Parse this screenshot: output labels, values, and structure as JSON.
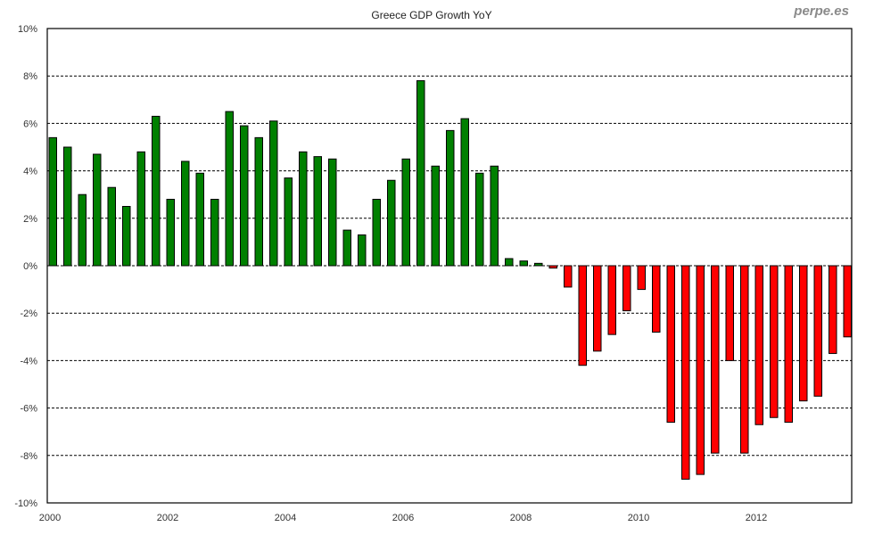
{
  "chart_data": {
    "type": "bar",
    "title": "Greece GDP Growth YoY",
    "watermark": "perpe.es",
    "xlabel": "",
    "ylabel": "",
    "ylim": [
      -10,
      10
    ],
    "ytick_labels": [
      "10%",
      "8%",
      "6%",
      "4%",
      "2%",
      "0%",
      "-2%",
      "-4%",
      "-6%",
      "-8%",
      "-10%"
    ],
    "ytick_values": [
      10,
      8,
      6,
      4,
      2,
      0,
      -2,
      -4,
      -6,
      -8,
      -10
    ],
    "xtick_labels": [
      "2000",
      "2002",
      "2004",
      "2006",
      "2008",
      "2010",
      "2012"
    ],
    "grid": true,
    "positive_color": "#008000",
    "negative_color": "#ff0000",
    "categories": [
      "2000Q1",
      "2000Q2",
      "2000Q3",
      "2000Q4",
      "2001Q1",
      "2001Q2",
      "2001Q3",
      "2001Q4",
      "2002Q1",
      "2002Q2",
      "2002Q3",
      "2002Q4",
      "2003Q1",
      "2003Q2",
      "2003Q3",
      "2003Q4",
      "2004Q1",
      "2004Q2",
      "2004Q3",
      "2004Q4",
      "2005Q1",
      "2005Q2",
      "2005Q3",
      "2005Q4",
      "2006Q1",
      "2006Q2",
      "2006Q3",
      "2006Q4",
      "2007Q1",
      "2007Q2",
      "2007Q3",
      "2007Q4",
      "2008Q1",
      "2008Q2",
      "2008Q3",
      "2008Q4",
      "2009Q1",
      "2009Q2",
      "2009Q3",
      "2009Q4",
      "2010Q1",
      "2010Q2",
      "2010Q3",
      "2010Q4",
      "2011Q1",
      "2011Q2",
      "2011Q3",
      "2011Q4",
      "2012Q1",
      "2012Q2",
      "2012Q3",
      "2012Q4",
      "2013Q1",
      "2013Q2",
      "2013Q3"
    ],
    "values": [
      5.4,
      5.0,
      3.0,
      4.7,
      3.3,
      2.5,
      4.8,
      6.3,
      2.8,
      4.4,
      3.9,
      2.8,
      6.5,
      5.9,
      5.4,
      6.1,
      3.7,
      4.8,
      4.6,
      4.5,
      1.5,
      1.3,
      2.8,
      3.6,
      4.5,
      7.8,
      4.2,
      5.7,
      6.2,
      3.9,
      4.2,
      0.3,
      0.2,
      0.1,
      -0.1,
      -0.9,
      -4.2,
      -3.6,
      -2.9,
      -1.9,
      -1.0,
      -2.8,
      -6.6,
      -9.0,
      -8.8,
      -7.9,
      -4.0,
      -7.9,
      -6.7,
      -6.4,
      -6.6,
      -5.7,
      -5.5,
      -3.7,
      -3.0
    ]
  }
}
